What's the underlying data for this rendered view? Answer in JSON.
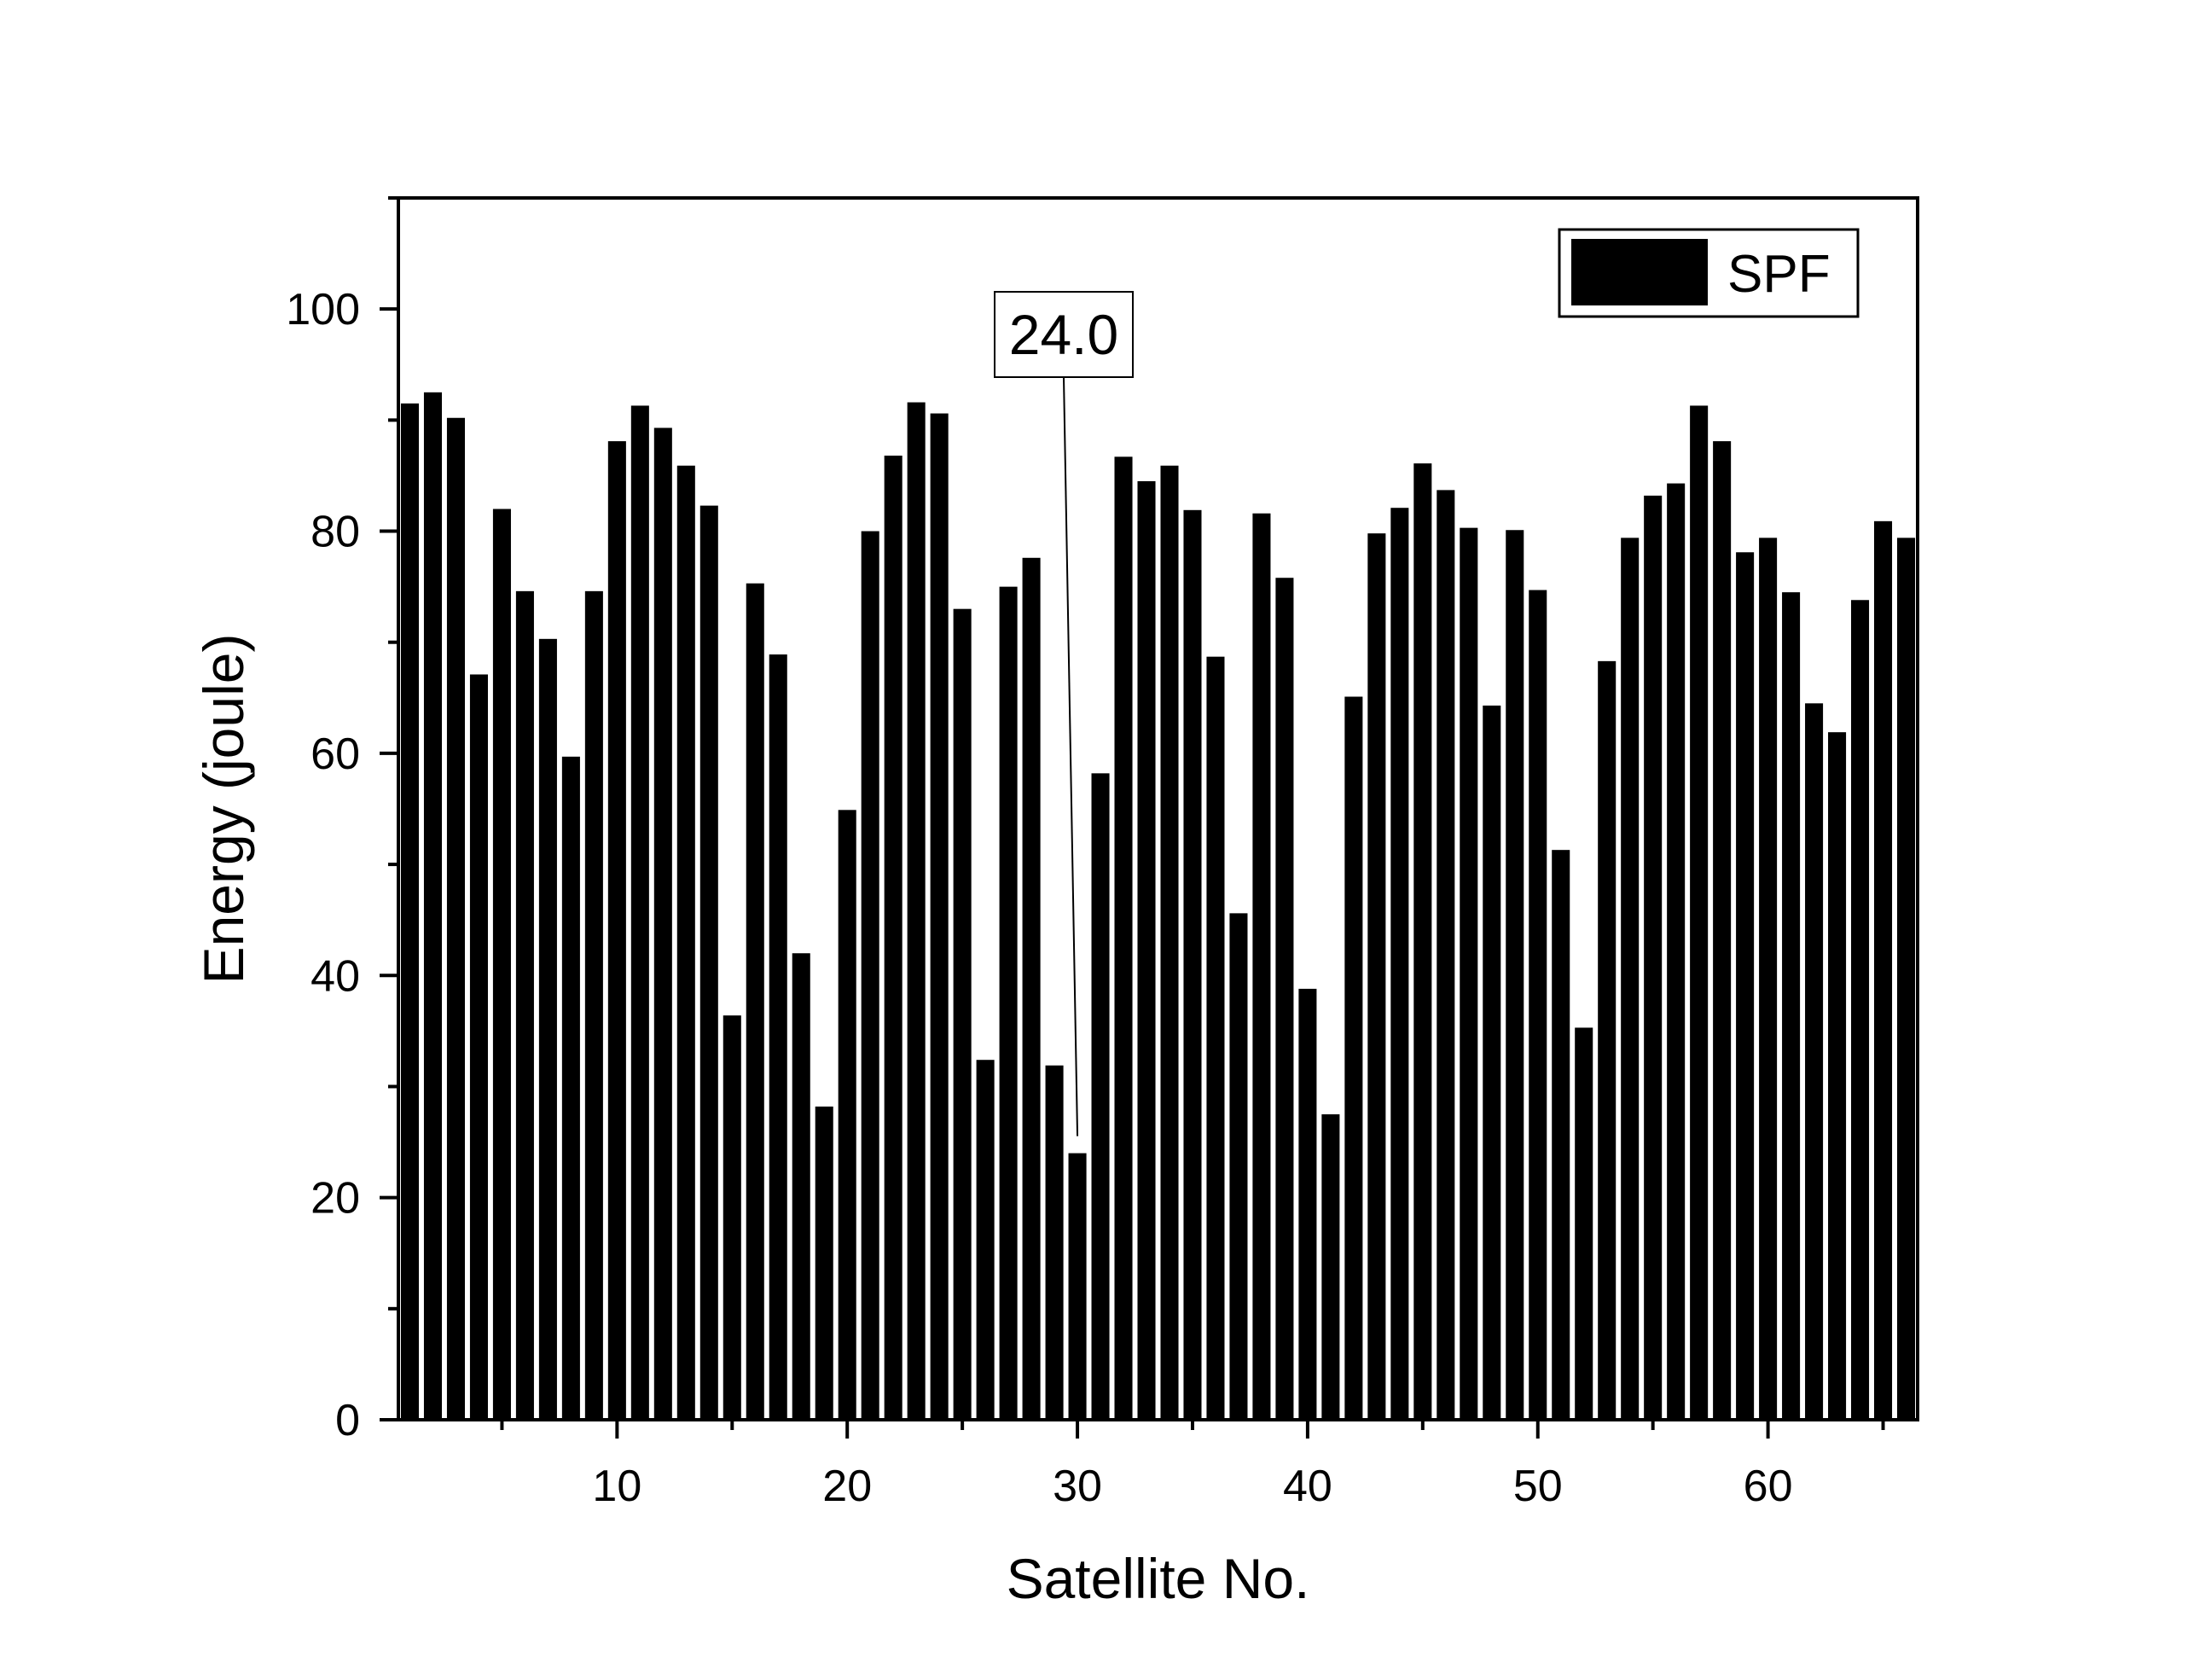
{
  "chart_data": {
    "type": "bar",
    "xlabel": "Satellite No.",
    "ylabel": "Energy (joule)",
    "xlim": [
      0.5,
      66.5
    ],
    "ylim": [
      0,
      110
    ],
    "x_major_ticks": [
      10,
      20,
      30,
      40,
      50,
      60
    ],
    "y_major_ticks": [
      0,
      20,
      40,
      60,
      80,
      100
    ],
    "grid": false,
    "legend_position": "top-right",
    "series": [
      {
        "name": "SPF",
        "color": "#000000",
        "x": [
          1,
          2,
          3,
          4,
          5,
          6,
          7,
          8,
          9,
          10,
          11,
          12,
          13,
          14,
          15,
          16,
          17,
          18,
          19,
          20,
          21,
          22,
          23,
          24,
          25,
          26,
          27,
          28,
          29,
          30,
          31,
          32,
          33,
          34,
          35,
          36,
          37,
          38,
          39,
          40,
          41,
          42,
          43,
          44,
          45,
          46,
          47,
          48,
          49,
          50,
          51,
          52,
          53,
          54,
          55,
          56,
          57,
          58,
          59,
          60,
          61,
          62,
          63,
          64,
          65,
          66
        ],
        "values": [
          91.5,
          92.5,
          90.2,
          67.1,
          82.0,
          74.6,
          70.3,
          59.7,
          74.6,
          88.1,
          91.3,
          89.3,
          85.9,
          82.3,
          36.4,
          75.3,
          68.9,
          42.0,
          28.2,
          54.9,
          80.0,
          86.8,
          91.6,
          90.6,
          73.0,
          32.4,
          75.0,
          77.6,
          31.9,
          24.0,
          58.2,
          86.7,
          84.5,
          85.9,
          81.9,
          68.7,
          45.6,
          81.6,
          75.8,
          38.8,
          27.5,
          65.1,
          79.8,
          82.1,
          86.1,
          83.7,
          80.3,
          64.3,
          80.1,
          74.7,
          51.3,
          35.3,
          68.3,
          79.4,
          83.2,
          84.3,
          91.3,
          88.1,
          78.1,
          79.4,
          74.5,
          64.5,
          61.9,
          73.8,
          80.9,
          79.4
        ]
      }
    ],
    "annotations": [
      {
        "text": "24.0",
        "target_x": 30,
        "target_y": 24.0
      }
    ]
  }
}
